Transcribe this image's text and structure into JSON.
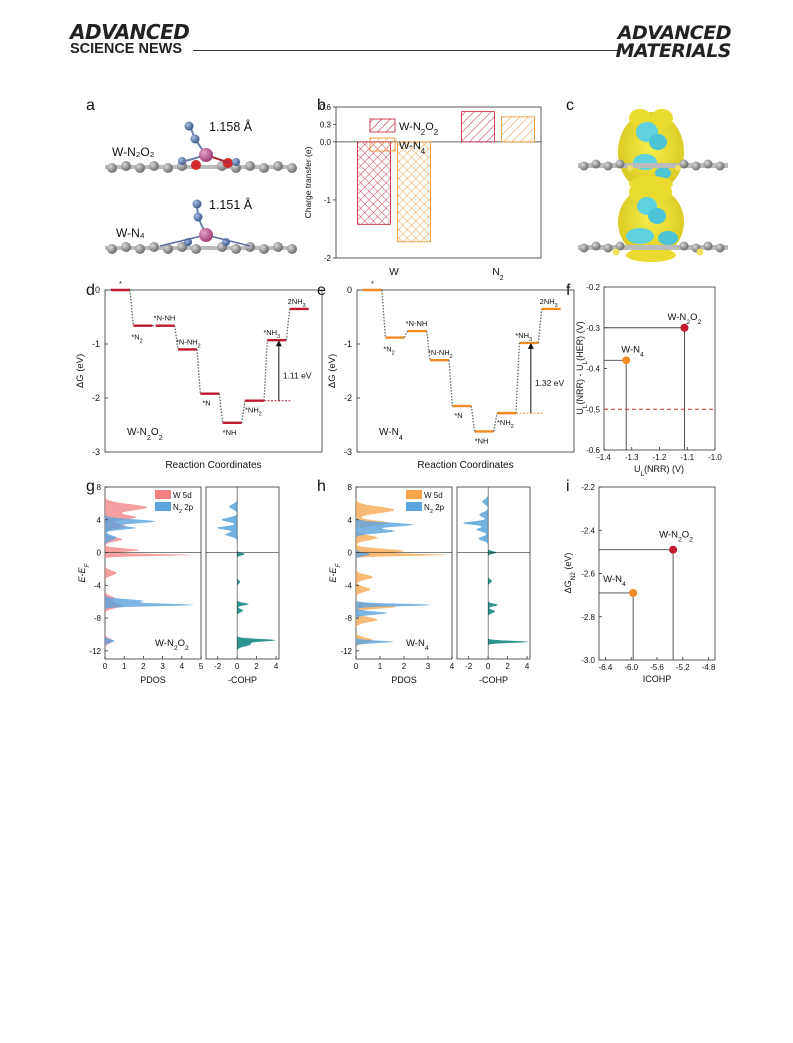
{
  "header": {
    "left_line1": "ADVANCED",
    "left_line2": "SCIENCE NEWS",
    "right_line1": "ADVANCED",
    "right_line2": "MATERIALS"
  },
  "panel_labels": {
    "a": "a",
    "b": "b",
    "c": "c",
    "d": "d",
    "e": "e",
    "f": "f",
    "g": "g",
    "h": "h",
    "i": "i"
  },
  "panel_a": {
    "top_bond": "1.158 Å",
    "top_label": "W-N₂O₂",
    "bottom_bond": "1.151 Å",
    "bottom_label": "W-N₄"
  },
  "chart_data": [
    {
      "panel": "b",
      "type": "bar",
      "categories": [
        "W",
        "N₂"
      ],
      "series": [
        {
          "name": "W-N₂O₂",
          "values": [
            -1.42,
            0.52
          ]
        },
        {
          "name": "W-N₄",
          "values": [
            -1.72,
            0.43
          ]
        }
      ],
      "ylabel": "Charge transfer (e)",
      "ylim": [
        -2,
        0.6
      ],
      "yticks": [
        "0.6",
        "0.3",
        "0.0",
        "-1",
        "-2"
      ],
      "legend": "top-left"
    },
    {
      "panel": "d",
      "type": "line",
      "title": "W-N₂O₂",
      "xlabel": "Reaction Coordinates",
      "ylabel": "ΔG (eV)",
      "ylim": [
        -3,
        0
      ],
      "yticks": [
        "0",
        "-1",
        "-2",
        "-3"
      ],
      "steps": [
        {
          "label": "*",
          "value": 0.0
        },
        {
          "label": "*N₂",
          "value": -0.66
        },
        {
          "label": "*N-NH",
          "value": -0.66
        },
        {
          "label": "*N-NH₂",
          "value": -1.1
        },
        {
          "label": "*N",
          "value": -1.92
        },
        {
          "label": "*NH",
          "value": -2.46
        },
        {
          "label": "*NH₂",
          "value": -2.05
        },
        {
          "label": "*NH₃",
          "value": -0.93
        },
        {
          "label": "2NH₃",
          "value": -0.35
        }
      ],
      "annotation": "1.11 eV"
    },
    {
      "panel": "e",
      "type": "line",
      "title": "W-N₄",
      "xlabel": "Reaction Coordinates",
      "ylabel": "ΔG (eV)",
      "ylim": [
        -3,
        0
      ],
      "yticks": [
        "0",
        "-1",
        "-2",
        "-3"
      ],
      "steps": [
        {
          "label": "*",
          "value": 0.0
        },
        {
          "label": "*N₂",
          "value": -0.88
        },
        {
          "label": "*N-NH",
          "value": -0.76
        },
        {
          "label": "*N-NH₂",
          "value": -1.3
        },
        {
          "label": "*N",
          "value": -2.15
        },
        {
          "label": "*NH",
          "value": -2.62
        },
        {
          "label": "*NH₂",
          "value": -2.28
        },
        {
          "label": "*NH₃",
          "value": -0.98
        },
        {
          "label": "2NH₃",
          "value": -0.35
        }
      ],
      "annotation": "1.32 eV"
    },
    {
      "panel": "f",
      "type": "scatter",
      "xlabel": "UL(NRR) (V)",
      "ylabel": "UL(NRR) - UL(HER) (V)",
      "xlim": [
        -1.4,
        -1.0
      ],
      "ylim": [
        -0.6,
        -0.2
      ],
      "xticks": [
        "-1.4",
        "-1.3",
        "-1.2",
        "-1.1",
        "-1.0"
      ],
      "yticks": [
        "-0.2",
        "-0.3",
        "-0.4",
        "-0.5",
        "-0.6"
      ],
      "points": [
        {
          "label": "W-N₂O₂",
          "x": -1.11,
          "y": -0.3,
          "color": "#c0182f"
        },
        {
          "label": "W-N₄",
          "x": -1.32,
          "y": -0.38,
          "color": "#f08a24"
        }
      ],
      "reference_line_y": -0.5
    },
    {
      "panel": "g",
      "type": "area",
      "title": "W-N₂O₂",
      "xlabel": "PDOS",
      "xlabel2": "-COHP",
      "ylabel": "E-EF",
      "ylim": [
        -13,
        8
      ],
      "yticks": [
        "8",
        "4",
        "0",
        "-4",
        "-8",
        "-12"
      ],
      "xticks": [
        "0",
        "1",
        "2",
        "3",
        "4",
        "5"
      ],
      "xticks2": [
        "-2",
        "0",
        "2",
        "4"
      ],
      "series": [
        {
          "name": "W 5d",
          "color": "#f08080"
        },
        {
          "name": "N₂ 2p",
          "color": "#5ba3dc"
        }
      ]
    },
    {
      "panel": "h",
      "type": "area",
      "title": "W-N₄",
      "xlabel": "PDOS",
      "xlabel2": "-COHP",
      "ylabel": "E-EF",
      "ylim": [
        -13,
        8
      ],
      "yticks": [
        "8",
        "4",
        "0",
        "-4",
        "-8",
        "-12"
      ],
      "xticks": [
        "0",
        "1",
        "2",
        "3",
        "4"
      ],
      "xticks2": [
        "-2",
        "0",
        "2",
        "4"
      ],
      "series": [
        {
          "name": "W 5d",
          "color": "#f5a44a"
        },
        {
          "name": "N₂ 2p",
          "color": "#5ba3dc"
        }
      ]
    },
    {
      "panel": "i",
      "type": "scatter",
      "xlabel": "ICOHP",
      "ylabel": "ΔGN₂ (eV)",
      "xlim": [
        -6.5,
        -4.7
      ],
      "ylim": [
        -3.0,
        -2.2
      ],
      "xticks": [
        "-6.4",
        "-6.0",
        "-5.6",
        "-5.2",
        "-4.8"
      ],
      "yticks": [
        "-2.2",
        "-2.4",
        "-2.6",
        "-2.8",
        "-3.0"
      ],
      "points": [
        {
          "label": "W-N₂O₂",
          "x": -5.35,
          "y": -2.49,
          "color": "#c0182f"
        },
        {
          "label": "W-N₄",
          "x": -5.97,
          "y": -2.69,
          "color": "#f08a24"
        }
      ]
    }
  ]
}
